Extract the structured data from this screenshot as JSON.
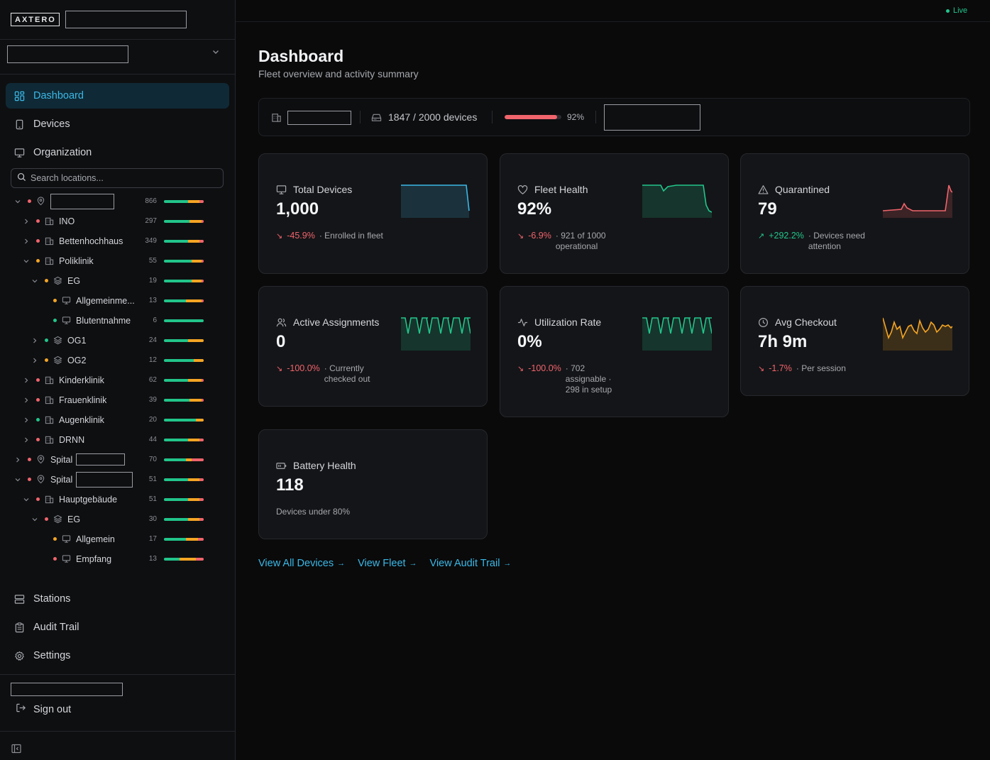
{
  "brand": {
    "logo": "AXTERO"
  },
  "sidebar": {
    "nav": [
      {
        "label": "Dashboard",
        "icon": "dashboard-icon",
        "active": true
      },
      {
        "label": "Devices",
        "icon": "tablet-icon"
      },
      {
        "label": "Organization",
        "icon": "monitor-icon"
      }
    ],
    "search_placeholder": "Search locations...",
    "tree": [
      {
        "label": "",
        "count": "866"
      },
      {
        "label": "INO",
        "count": "297"
      },
      {
        "label": "Bettenhochhaus",
        "count": "349"
      },
      {
        "label": "Poliklinik",
        "count": "55"
      },
      {
        "label": "EG",
        "count": "19"
      },
      {
        "label": "Allgemeinme...",
        "count": "13"
      },
      {
        "label": "Blutentnahme",
        "count": "6"
      },
      {
        "label": "OG1",
        "count": "24"
      },
      {
        "label": "OG2",
        "count": "12"
      },
      {
        "label": "Kinderklinik",
        "count": "62"
      },
      {
        "label": "Frauenklinik",
        "count": "39"
      },
      {
        "label": "Augenklinik",
        "count": "20"
      },
      {
        "label": "DRNN",
        "count": "44"
      },
      {
        "label": "Spital",
        "count": "70"
      },
      {
        "label": "Spital",
        "count": "51"
      },
      {
        "label": "Hauptgebäude",
        "count": "51"
      },
      {
        "label": "EG",
        "count": "30"
      },
      {
        "label": "Allgemein",
        "count": "17"
      },
      {
        "label": "Empfang",
        "count": "13"
      }
    ],
    "bottom_nav": [
      {
        "label": "Stations",
        "icon": "server-icon"
      },
      {
        "label": "Audit Trail",
        "icon": "clipboard-icon"
      },
      {
        "label": "Settings",
        "icon": "gear-icon"
      }
    ],
    "signout": "Sign out"
  },
  "colors": {
    "green": "#22c58b",
    "amber": "#f5a524",
    "red": "#f0646c",
    "blue": "#3bb8e6"
  },
  "header": {
    "live": "Live"
  },
  "page": {
    "title": "Dashboard",
    "subtitle": "Fleet overview and activity summary"
  },
  "statusbar": {
    "devices": "1847 / 2000 devices",
    "percent_label": "92%",
    "percent": 0.92
  },
  "cards": [
    {
      "title": "Total Devices",
      "icon": "monitor-icon",
      "value": "1,000",
      "trend": "-45.9%",
      "trend_dir": "down",
      "note": "· Enrolled in fleet"
    },
    {
      "title": "Fleet Health",
      "icon": "heart-icon",
      "value": "92%",
      "trend": "-6.9%",
      "trend_dir": "down",
      "note": "· 921 of 1000 operational"
    },
    {
      "title": "Quarantined",
      "icon": "warning-icon",
      "value": "79",
      "trend": "+292.2%",
      "trend_dir": "up",
      "note": "· Devices need attention"
    },
    {
      "title": "Active Assignments",
      "icon": "users-icon",
      "value": "0",
      "trend": "-100.0%",
      "trend_dir": "down",
      "note": "· Currently checked out"
    },
    {
      "title": "Utilization Rate",
      "icon": "activity-icon",
      "value": "0%",
      "trend": "-100.0%",
      "trend_dir": "down",
      "note": "· 702 assignable · 298 in setup"
    },
    {
      "title": "Avg Checkout",
      "icon": "clock-icon",
      "value": "7h 9m",
      "trend": "-1.7%",
      "trend_dir": "down",
      "note": "· Per session"
    },
    {
      "title": "Battery Health",
      "icon": "battery-icon",
      "value": "118",
      "note": "Devices under 80%"
    }
  ],
  "links": [
    {
      "label": "View All Devices"
    },
    {
      "label": "View Fleet"
    },
    {
      "label": "View Audit Trail"
    }
  ]
}
